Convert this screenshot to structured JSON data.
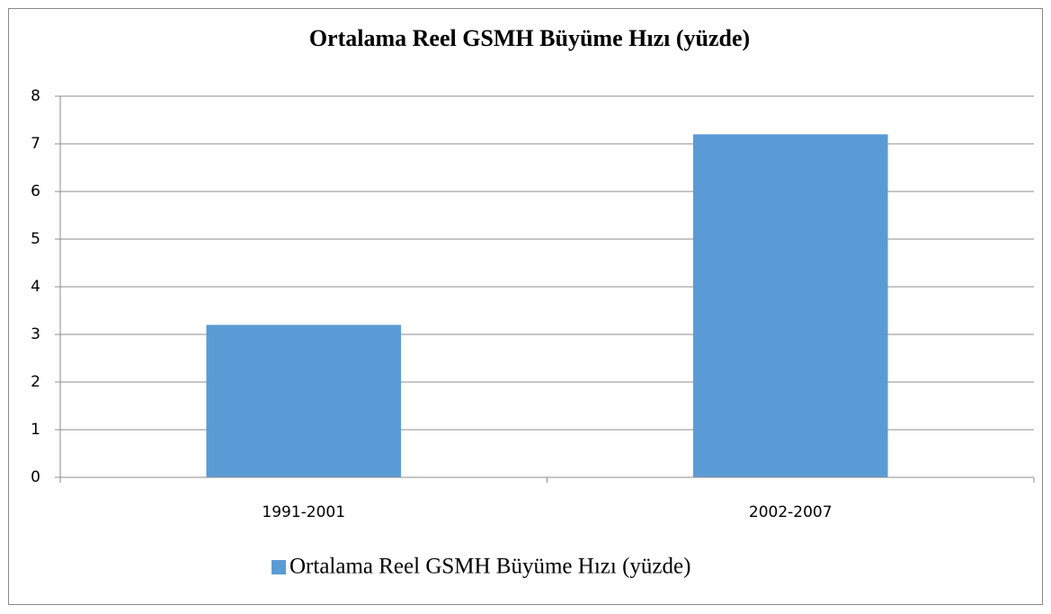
{
  "chart_data": {
    "type": "bar",
    "title": "Ortalama Reel GSMH Büyüme Hızı (yüzde)",
    "categories": [
      "1991-2001",
      "2002-2007"
    ],
    "series": [
      {
        "name": "Ortalama Reel GSMH Büyüme Hızı (yüzde)",
        "color": "#5b9bd5",
        "values": [
          3.2,
          7.2
        ]
      }
    ],
    "ylim": [
      0,
      8
    ],
    "yticks": [
      0,
      1,
      2,
      3,
      4,
      5,
      6,
      7,
      8
    ],
    "grid": true,
    "legend": "bottom"
  }
}
